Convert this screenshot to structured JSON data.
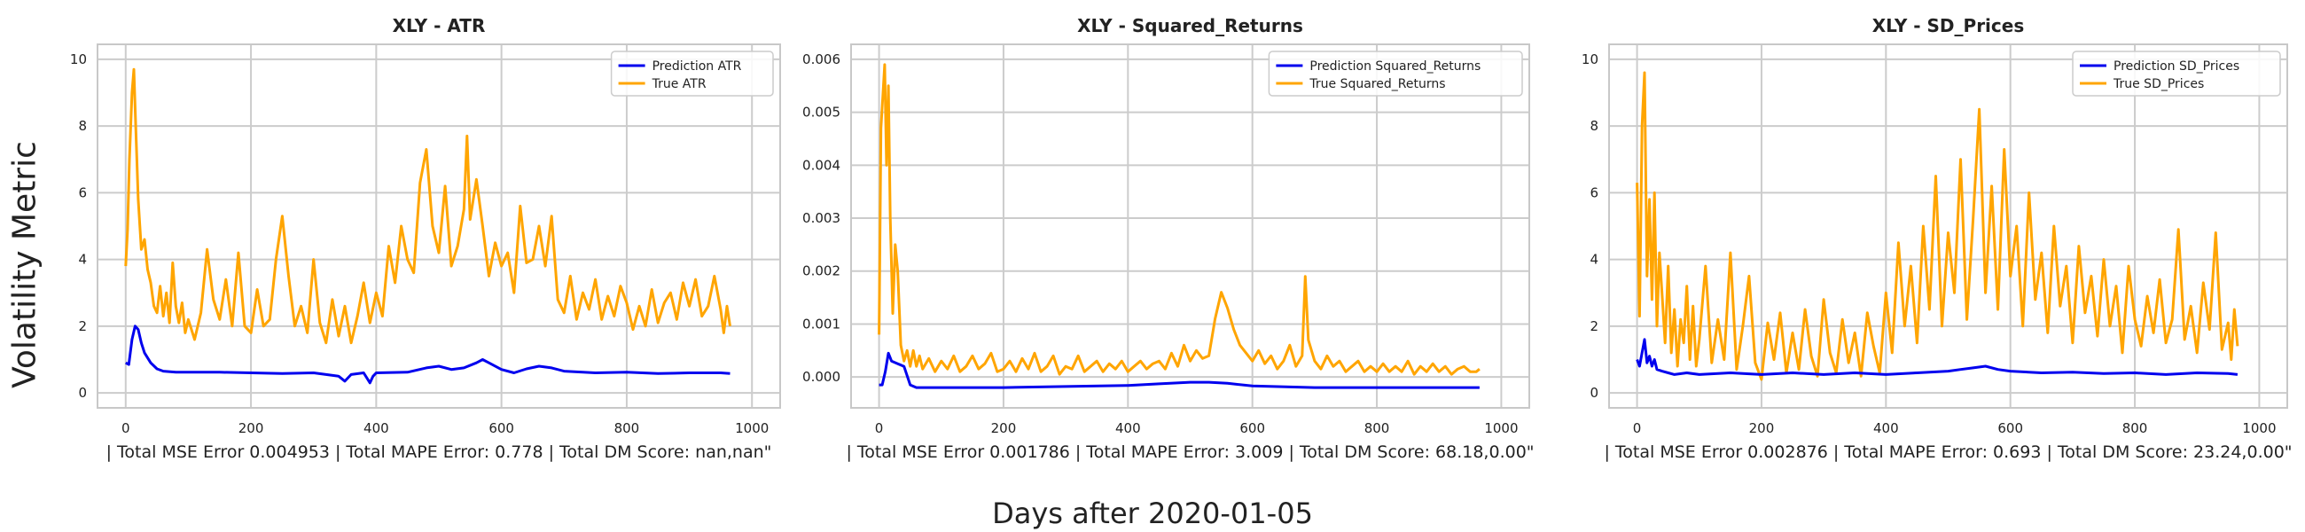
{
  "figure": {
    "ylabel": "Volatility Metric",
    "xlabel": "Days after 2020-01-05",
    "colors": {
      "prediction": "#0000ee",
      "true": "#ffa500",
      "grid": "#cccccc",
      "frame": "#c8c8c8"
    }
  },
  "chart_data": [
    {
      "type": "line",
      "title": "XLY - ATR",
      "subtitle": "| Total MSE Error 0.004953 | Total MAPE Error: 0.778 | Total DM Score: nan,nan\"",
      "xlim": [
        0,
        1000
      ],
      "ylim": [
        0,
        10
      ],
      "xticks": [
        "0",
        "200",
        "400",
        "600",
        "800",
        "1000"
      ],
      "yticks": [
        "0",
        "2",
        "4",
        "6",
        "8",
        "10"
      ],
      "legend_position": "top-right",
      "series": [
        {
          "name": "Prediction ATR",
          "color": "#0000ee",
          "x": [
            0,
            5,
            10,
            15,
            20,
            25,
            30,
            40,
            50,
            60,
            80,
            100,
            150,
            200,
            250,
            300,
            320,
            340,
            350,
            360,
            380,
            390,
            395,
            400,
            450,
            480,
            500,
            520,
            540,
            560,
            570,
            580,
            600,
            620,
            640,
            660,
            680,
            700,
            750,
            800,
            850,
            900,
            950,
            965
          ],
          "y": [
            0.9,
            0.85,
            1.6,
            2.0,
            1.9,
            1.5,
            1.2,
            0.9,
            0.72,
            0.65,
            0.62,
            0.62,
            0.62,
            0.6,
            0.58,
            0.6,
            0.55,
            0.5,
            0.35,
            0.55,
            0.6,
            0.3,
            0.5,
            0.6,
            0.62,
            0.75,
            0.8,
            0.7,
            0.75,
            0.9,
            1.0,
            0.9,
            0.7,
            0.6,
            0.72,
            0.8,
            0.75,
            0.65,
            0.6,
            0.62,
            0.58,
            0.6,
            0.6,
            0.58
          ]
        },
        {
          "name": "True ATR",
          "color": "#ffa500",
          "x": [
            0,
            3,
            6,
            10,
            13,
            16,
            20,
            25,
            30,
            35,
            40,
            45,
            50,
            55,
            60,
            65,
            70,
            75,
            80,
            85,
            90,
            95,
            100,
            110,
            120,
            130,
            140,
            150,
            160,
            170,
            180,
            190,
            200,
            210,
            220,
            230,
            240,
            250,
            260,
            270,
            280,
            290,
            300,
            310,
            320,
            330,
            340,
            350,
            360,
            370,
            380,
            390,
            400,
            410,
            420,
            430,
            440,
            450,
            460,
            470,
            480,
            490,
            500,
            510,
            520,
            530,
            540,
            545,
            550,
            560,
            570,
            580,
            590,
            600,
            610,
            620,
            630,
            640,
            650,
            660,
            670,
            680,
            690,
            700,
            710,
            720,
            730,
            740,
            750,
            760,
            770,
            780,
            790,
            800,
            810,
            820,
            830,
            840,
            850,
            860,
            870,
            880,
            890,
            900,
            910,
            920,
            930,
            940,
            950,
            955,
            960,
            965
          ],
          "y": [
            3.8,
            4.9,
            7.0,
            9.0,
            9.7,
            8.0,
            5.8,
            4.3,
            4.6,
            3.7,
            3.3,
            2.6,
            2.4,
            3.2,
            2.3,
            3.0,
            2.1,
            3.9,
            2.6,
            2.1,
            2.7,
            1.8,
            2.2,
            1.6,
            2.4,
            4.3,
            2.8,
            2.2,
            3.4,
            2.0,
            4.2,
            2.0,
            1.8,
            3.1,
            2.0,
            2.2,
            4.0,
            5.3,
            3.5,
            2.0,
            2.6,
            1.8,
            4.0,
            2.1,
            1.5,
            2.8,
            1.7,
            2.6,
            1.5,
            2.3,
            3.3,
            2.1,
            3.0,
            2.3,
            4.4,
            3.3,
            5.0,
            4.0,
            3.6,
            6.3,
            7.3,
            5.0,
            4.2,
            6.2,
            3.8,
            4.4,
            5.5,
            7.7,
            5.2,
            6.4,
            5.0,
            3.5,
            4.5,
            3.8,
            4.2,
            3.0,
            5.6,
            3.9,
            4.0,
            5.0,
            3.8,
            5.3,
            2.8,
            2.4,
            3.5,
            2.2,
            3.0,
            2.5,
            3.4,
            2.2,
            2.9,
            2.3,
            3.2,
            2.7,
            1.9,
            2.6,
            2.0,
            3.1,
            2.1,
            2.7,
            3.0,
            2.2,
            3.3,
            2.6,
            3.4,
            2.3,
            2.6,
            3.5,
            2.5,
            1.8,
            2.6,
            2.0
          ]
        }
      ]
    },
    {
      "type": "line",
      "title": "XLY - Squared_Returns",
      "subtitle": "| Total MSE Error 0.001786 | Total MAPE Error: 3.009 | Total DM Score: 68.18,0.00\"",
      "xlim": [
        0,
        1000
      ],
      "ylim": [
        -0.0003,
        0.006
      ],
      "xticks": [
        "0",
        "200",
        "400",
        "600",
        "800",
        "1000"
      ],
      "yticks": [
        "0.000",
        "0.001",
        "0.002",
        "0.003",
        "0.004",
        "0.005",
        "0.006"
      ],
      "legend_position": "top-right",
      "series": [
        {
          "name": "Prediction Squared_Returns",
          "color": "#0000ee",
          "x": [
            0,
            5,
            10,
            15,
            20,
            30,
            40,
            50,
            60,
            100,
            200,
            300,
            400,
            450,
            500,
            530,
            560,
            600,
            700,
            800,
            900,
            965
          ],
          "y": [
            -0.00015,
            -0.00015,
            0.0001,
            0.00045,
            0.0003,
            0.00025,
            0.0002,
            -0.00015,
            -0.0002,
            -0.0002,
            -0.0002,
            -0.00018,
            -0.00016,
            -0.00013,
            -0.0001,
            -0.0001,
            -0.00012,
            -0.00017,
            -0.0002,
            -0.0002,
            -0.0002,
            -0.0002
          ]
        },
        {
          "name": "True Squared_Returns",
          "color": "#ffa500",
          "x": [
            0,
            3,
            6,
            9,
            12,
            15,
            18,
            22,
            26,
            30,
            35,
            40,
            45,
            50,
            55,
            60,
            65,
            70,
            80,
            90,
            100,
            110,
            120,
            130,
            140,
            150,
            160,
            170,
            180,
            190,
            200,
            210,
            220,
            230,
            240,
            250,
            260,
            270,
            280,
            290,
            300,
            310,
            320,
            330,
            340,
            350,
            360,
            370,
            380,
            390,
            400,
            410,
            420,
            430,
            440,
            450,
            460,
            470,
            480,
            490,
            500,
            510,
            520,
            530,
            540,
            550,
            560,
            570,
            580,
            590,
            600,
            610,
            620,
            630,
            640,
            650,
            660,
            670,
            680,
            685,
            690,
            700,
            710,
            720,
            730,
            740,
            750,
            760,
            770,
            780,
            790,
            800,
            810,
            820,
            830,
            840,
            850,
            860,
            870,
            880,
            890,
            900,
            910,
            920,
            930,
            940,
            950,
            960,
            965
          ],
          "y": [
            0.0008,
            0.0047,
            0.0053,
            0.0059,
            0.004,
            0.0055,
            0.003,
            0.0012,
            0.0025,
            0.002,
            0.0006,
            0.0003,
            0.0005,
            0.0002,
            0.0005,
            0.0002,
            0.0004,
            0.00015,
            0.00035,
            0.0001,
            0.0003,
            0.00015,
            0.0004,
            0.0001,
            0.0002,
            0.0004,
            0.00015,
            0.00025,
            0.00045,
            0.0001,
            0.00015,
            0.0003,
            0.0001,
            0.00035,
            0.00015,
            0.00045,
            0.0001,
            0.0002,
            0.0004,
            5e-05,
            0.0002,
            0.00015,
            0.0004,
            0.0001,
            0.0002,
            0.0003,
            0.0001,
            0.00025,
            0.00015,
            0.0003,
            0.0001,
            0.0002,
            0.0003,
            0.00015,
            0.00025,
            0.0003,
            0.00015,
            0.00045,
            0.0002,
            0.0006,
            0.0003,
            0.0005,
            0.00035,
            0.0004,
            0.0011,
            0.0016,
            0.0013,
            0.0009,
            0.0006,
            0.00045,
            0.0003,
            0.0005,
            0.00025,
            0.0004,
            0.00015,
            0.0003,
            0.0006,
            0.0002,
            0.0004,
            0.0019,
            0.0007,
            0.0003,
            0.00015,
            0.0004,
            0.0002,
            0.0003,
            0.0001,
            0.0002,
            0.0003,
            0.0001,
            0.0002,
            0.0001,
            0.00025,
            0.0001,
            0.0002,
            0.0001,
            0.0003,
            5e-05,
            0.0002,
            0.0001,
            0.00025,
            0.0001,
            0.0002,
            5e-05,
            0.00015,
            0.0002,
            0.0001,
            0.0001,
            0.00015
          ]
        }
      ]
    },
    {
      "type": "line",
      "title": "XLY - SD_Prices",
      "subtitle": "| Total MSE Error 0.002876 | Total MAPE Error: 0.693 | Total DM Score: 23.24,0.00\"",
      "xlim": [
        0,
        1000
      ],
      "ylim": [
        0,
        10
      ],
      "xticks": [
        "0",
        "200",
        "400",
        "600",
        "800",
        "1000"
      ],
      "yticks": [
        "0",
        "2",
        "4",
        "6",
        "8",
        "10"
      ],
      "legend_position": "top-right",
      "series": [
        {
          "name": "Prediction SD_Prices",
          "color": "#0000ee",
          "x": [
            0,
            4,
            8,
            12,
            16,
            20,
            24,
            28,
            32,
            40,
            50,
            60,
            80,
            100,
            150,
            200,
            250,
            300,
            350,
            400,
            450,
            500,
            520,
            540,
            560,
            580,
            600,
            650,
            700,
            750,
            800,
            850,
            900,
            950,
            965
          ],
          "y": [
            1.0,
            0.8,
            1.2,
            1.6,
            0.9,
            1.1,
            0.8,
            1.0,
            0.7,
            0.65,
            0.6,
            0.55,
            0.6,
            0.55,
            0.6,
            0.55,
            0.6,
            0.55,
            0.6,
            0.55,
            0.6,
            0.65,
            0.7,
            0.75,
            0.8,
            0.7,
            0.65,
            0.6,
            0.62,
            0.58,
            0.6,
            0.55,
            0.6,
            0.58,
            0.55
          ]
        },
        {
          "name": "True SD_Prices",
          "color": "#ffa500",
          "x": [
            0,
            4,
            8,
            12,
            16,
            20,
            24,
            28,
            32,
            36,
            40,
            45,
            50,
            55,
            60,
            65,
            70,
            75,
            80,
            85,
            90,
            95,
            100,
            110,
            120,
            130,
            140,
            150,
            160,
            170,
            180,
            190,
            200,
            210,
            220,
            230,
            240,
            250,
            260,
            270,
            280,
            290,
            300,
            310,
            320,
            330,
            340,
            350,
            360,
            370,
            380,
            390,
            400,
            410,
            420,
            430,
            440,
            450,
            460,
            470,
            480,
            490,
            500,
            510,
            520,
            530,
            540,
            550,
            560,
            570,
            580,
            590,
            600,
            610,
            620,
            630,
            640,
            650,
            660,
            670,
            680,
            690,
            700,
            710,
            720,
            730,
            740,
            750,
            760,
            770,
            780,
            790,
            800,
            810,
            820,
            830,
            840,
            850,
            860,
            870,
            880,
            890,
            900,
            910,
            920,
            930,
            940,
            950,
            955,
            960,
            965
          ],
          "y": [
            6.3,
            2.3,
            8.0,
            9.6,
            3.5,
            5.8,
            2.8,
            6.0,
            2.0,
            4.2,
            3.0,
            1.5,
            3.8,
            1.2,
            2.5,
            0.8,
            2.2,
            1.5,
            3.2,
            1.0,
            2.6,
            0.8,
            1.6,
            3.8,
            0.9,
            2.2,
            1.0,
            4.2,
            0.7,
            2.0,
            3.5,
            0.9,
            0.4,
            2.1,
            1.0,
            2.4,
            0.6,
            1.8,
            0.7,
            2.5,
            1.1,
            0.5,
            2.8,
            1.2,
            0.6,
            2.2,
            0.9,
            1.8,
            0.5,
            2.4,
            1.4,
            0.6,
            3.0,
            1.2,
            4.5,
            2.0,
            3.8,
            1.5,
            5.0,
            2.5,
            6.5,
            2.0,
            4.8,
            3.0,
            7.0,
            2.2,
            5.2,
            8.5,
            3.0,
            6.2,
            2.5,
            7.3,
            3.5,
            5.0,
            2.0,
            6.0,
            2.8,
            4.2,
            1.8,
            5.0,
            2.6,
            3.8,
            1.5,
            4.4,
            2.4,
            3.5,
            1.7,
            4.0,
            2.0,
            3.2,
            1.2,
            3.8,
            2.2,
            1.4,
            2.9,
            1.8,
            3.4,
            1.5,
            2.2,
            4.9,
            1.6,
            2.6,
            1.2,
            3.3,
            1.9,
            4.8,
            1.3,
            2.1,
            1.0,
            2.5,
            1.4
          ]
        }
      ]
    }
  ]
}
